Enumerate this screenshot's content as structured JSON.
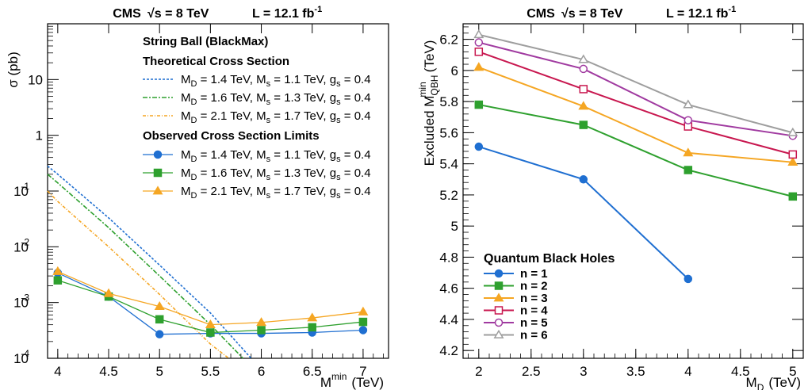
{
  "chart_data": [
    {
      "type": "line",
      "header": {
        "experiment": "CMS",
        "energy": "√s = 8 TeV",
        "lumi_prefix": "L = 12.1 fb",
        "lumi_exp": "-1"
      },
      "ylabel": "σ (pb)",
      "xlabel": {
        "main": "M",
        "sup": "min",
        "unit": "(TeV)"
      },
      "xlim": [
        3.9,
        7.25
      ],
      "ylim": [
        0.0001,
        100
      ],
      "yscale": "log",
      "xticks": [
        4,
        4.5,
        5,
        5.5,
        6,
        6.5,
        7
      ],
      "xtick_labels": [
        "4",
        "4.5",
        "5",
        "5.5",
        "6",
        "6.5",
        "7"
      ],
      "yticks": [
        {
          "value": 10,
          "base": "10",
          "exp": ""
        },
        {
          "value": 1,
          "base": "1",
          "exp": ""
        },
        {
          "value": 0.1,
          "base": "10",
          "exp": "-1"
        },
        {
          "value": 0.01,
          "base": "10",
          "exp": "-2"
        },
        {
          "value": 0.001,
          "base": "10",
          "exp": "-3"
        },
        {
          "value": 0.0001,
          "base": "10",
          "exp": "-4"
        }
      ],
      "legend": {
        "title": "String Ball (BlackMax)",
        "theory_heading": "Theoretical Cross Section",
        "observed_heading": "Observed Cross Section Limits"
      },
      "series": [
        {
          "name": "M_D = 1.4 TeV, M_s = 1.1 TeV, g_s = 0.4",
          "kind": "theory",
          "color": "#1f6fd1",
          "x": [
            3.9,
            4.0,
            4.5,
            5.0,
            5.5,
            5.9
          ],
          "y": [
            0.28,
            0.2,
            0.033,
            0.0047,
            0.00065,
            0.0001
          ]
        },
        {
          "name": "M_D = 1.6 TeV, M_s = 1.3 TeV, g_s = 0.4",
          "kind": "theory",
          "color": "#2ea02e",
          "x": [
            3.9,
            4.0,
            4.5,
            5.0,
            5.5,
            5.82
          ],
          "y": [
            0.2,
            0.14,
            0.022,
            0.003,
            0.0004,
            0.0001
          ]
        },
        {
          "name": "M_D = 2.1 TeV, M_s = 1.7 TeV, g_s = 0.4",
          "kind": "theory",
          "color": "#f5a623",
          "x": [
            3.9,
            4.0,
            4.5,
            5.0,
            5.5,
            5.68
          ],
          "y": [
            0.1,
            0.065,
            0.01,
            0.0014,
            0.00018,
            0.0001
          ]
        },
        {
          "name": "M_D = 1.4 TeV, M_s = 1.1 TeV, g_s = 0.4",
          "kind": "observed",
          "marker": "circle",
          "color": "#1f6fd1",
          "x": [
            4,
            4.5,
            5,
            5.5,
            6,
            6.5,
            7
          ],
          "y": [
            0.0034,
            0.00128,
            0.00027,
            0.00028,
            0.00028,
            0.00029,
            0.00032
          ]
        },
        {
          "name": "M_D = 1.6 TeV, M_s = 1.3 TeV, g_s = 0.4",
          "kind": "observed",
          "marker": "square",
          "color": "#2ea02e",
          "x": [
            4,
            4.5,
            5,
            5.5,
            6,
            6.5,
            7
          ],
          "y": [
            0.0025,
            0.00128,
            0.0005,
            0.00029,
            0.00032,
            0.00036,
            0.00045
          ]
        },
        {
          "name": "M_D = 2.1 TeV, M_s = 1.7 TeV, g_s = 0.4",
          "kind": "observed",
          "marker": "triangle",
          "color": "#f5a623",
          "x": [
            4,
            4.5,
            5,
            5.5,
            6,
            6.5,
            7
          ],
          "y": [
            0.0036,
            0.00145,
            0.00085,
            0.0004,
            0.00044,
            0.00053,
            0.00068
          ]
        }
      ]
    },
    {
      "type": "line",
      "header": {
        "experiment": "CMS",
        "energy": "√s = 8 TeV",
        "lumi_prefix": "L = 12.1 fb",
        "lumi_exp": "-1"
      },
      "ylabel": {
        "main": "Excluded M",
        "sub": "QBH",
        "sup": "min",
        "unit": "(TeV)"
      },
      "xlabel": {
        "main": "M",
        "sub": "D",
        "unit": "(TeV)"
      },
      "xlim": [
        1.85,
        5.1
      ],
      "ylim": [
        4.15,
        6.3
      ],
      "xticks": [
        2,
        2.5,
        3,
        3.5,
        4,
        4.5,
        5
      ],
      "xtick_labels": [
        "2",
        "2.5",
        "3",
        "3.5",
        "4",
        "4.5",
        "5"
      ],
      "yticks": [
        4.2,
        4.4,
        4.6,
        4.8,
        5,
        5.2,
        5.4,
        5.6,
        5.8,
        6,
        6.2
      ],
      "ytick_labels": [
        "4.2",
        "4.4",
        "4.6",
        "4.8",
        "5",
        "5.2",
        "5.4",
        "5.6",
        "5.8",
        "6",
        "6.2"
      ],
      "legend": {
        "title": "Quantum Black Holes",
        "position": "bottom-left"
      },
      "series": [
        {
          "name": "n = 1",
          "marker": "circle",
          "filled": true,
          "color": "#1f6fd1",
          "x": [
            2,
            3,
            4
          ],
          "y": [
            5.51,
            5.3,
            4.66
          ]
        },
        {
          "name": "n = 2",
          "marker": "square",
          "filled": true,
          "color": "#2ea02e",
          "x": [
            2,
            3,
            4,
            5
          ],
          "y": [
            5.78,
            5.65,
            5.36,
            5.19
          ]
        },
        {
          "name": "n = 3",
          "marker": "triangle",
          "filled": true,
          "color": "#f5a623",
          "x": [
            2,
            3,
            4,
            5
          ],
          "y": [
            6.02,
            5.77,
            5.47,
            5.41
          ]
        },
        {
          "name": "n = 4",
          "marker": "square",
          "filled": false,
          "color": "#c8174f",
          "x": [
            2,
            3,
            4,
            5
          ],
          "y": [
            6.12,
            5.88,
            5.64,
            5.46
          ]
        },
        {
          "name": "n = 5",
          "marker": "circle",
          "filled": false,
          "color": "#a03aa0",
          "x": [
            2,
            3,
            4,
            5
          ],
          "y": [
            6.18,
            6.01,
            5.68,
            5.58
          ]
        },
        {
          "name": "n = 6",
          "marker": "triangle",
          "filled": false,
          "color": "#9e9e9e",
          "x": [
            2,
            3,
            4,
            5
          ],
          "y": [
            6.23,
            6.07,
            5.78,
            5.6
          ]
        }
      ]
    }
  ]
}
